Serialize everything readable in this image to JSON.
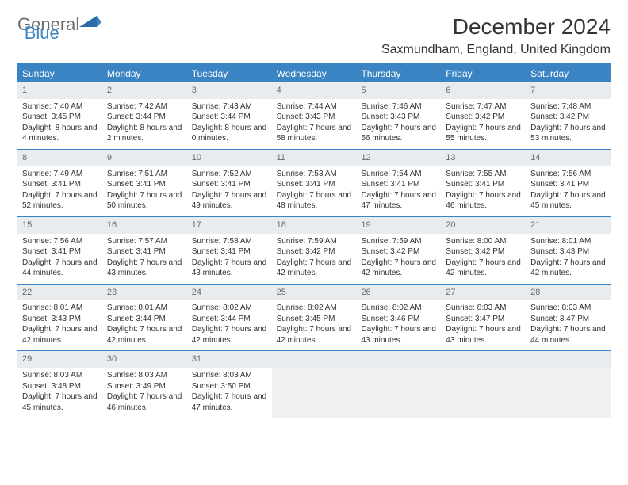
{
  "brand": {
    "general": "General",
    "blue": "Blue"
  },
  "title": "December 2024",
  "location": "Saxmundham, England, United Kingdom",
  "colors": {
    "accent": "#3a84c4",
    "header_text": "#ffffff",
    "day_num_bg": "#e8ecef",
    "day_num_text": "#6b6b6b",
    "body_text": "#333333"
  },
  "weekdays": [
    "Sunday",
    "Monday",
    "Tuesday",
    "Wednesday",
    "Thursday",
    "Friday",
    "Saturday"
  ],
  "weeks": [
    [
      {
        "n": "1",
        "sunrise": "Sunrise: 7:40 AM",
        "sunset": "Sunset: 3:45 PM",
        "daylight": "Daylight: 8 hours and 4 minutes."
      },
      {
        "n": "2",
        "sunrise": "Sunrise: 7:42 AM",
        "sunset": "Sunset: 3:44 PM",
        "daylight": "Daylight: 8 hours and 2 minutes."
      },
      {
        "n": "3",
        "sunrise": "Sunrise: 7:43 AM",
        "sunset": "Sunset: 3:44 PM",
        "daylight": "Daylight: 8 hours and 0 minutes."
      },
      {
        "n": "4",
        "sunrise": "Sunrise: 7:44 AM",
        "sunset": "Sunset: 3:43 PM",
        "daylight": "Daylight: 7 hours and 58 minutes."
      },
      {
        "n": "5",
        "sunrise": "Sunrise: 7:46 AM",
        "sunset": "Sunset: 3:43 PM",
        "daylight": "Daylight: 7 hours and 56 minutes."
      },
      {
        "n": "6",
        "sunrise": "Sunrise: 7:47 AM",
        "sunset": "Sunset: 3:42 PM",
        "daylight": "Daylight: 7 hours and 55 minutes."
      },
      {
        "n": "7",
        "sunrise": "Sunrise: 7:48 AM",
        "sunset": "Sunset: 3:42 PM",
        "daylight": "Daylight: 7 hours and 53 minutes."
      }
    ],
    [
      {
        "n": "8",
        "sunrise": "Sunrise: 7:49 AM",
        "sunset": "Sunset: 3:41 PM",
        "daylight": "Daylight: 7 hours and 52 minutes."
      },
      {
        "n": "9",
        "sunrise": "Sunrise: 7:51 AM",
        "sunset": "Sunset: 3:41 PM",
        "daylight": "Daylight: 7 hours and 50 minutes."
      },
      {
        "n": "10",
        "sunrise": "Sunrise: 7:52 AM",
        "sunset": "Sunset: 3:41 PM",
        "daylight": "Daylight: 7 hours and 49 minutes."
      },
      {
        "n": "11",
        "sunrise": "Sunrise: 7:53 AM",
        "sunset": "Sunset: 3:41 PM",
        "daylight": "Daylight: 7 hours and 48 minutes."
      },
      {
        "n": "12",
        "sunrise": "Sunrise: 7:54 AM",
        "sunset": "Sunset: 3:41 PM",
        "daylight": "Daylight: 7 hours and 47 minutes."
      },
      {
        "n": "13",
        "sunrise": "Sunrise: 7:55 AM",
        "sunset": "Sunset: 3:41 PM",
        "daylight": "Daylight: 7 hours and 46 minutes."
      },
      {
        "n": "14",
        "sunrise": "Sunrise: 7:56 AM",
        "sunset": "Sunset: 3:41 PM",
        "daylight": "Daylight: 7 hours and 45 minutes."
      }
    ],
    [
      {
        "n": "15",
        "sunrise": "Sunrise: 7:56 AM",
        "sunset": "Sunset: 3:41 PM",
        "daylight": "Daylight: 7 hours and 44 minutes."
      },
      {
        "n": "16",
        "sunrise": "Sunrise: 7:57 AM",
        "sunset": "Sunset: 3:41 PM",
        "daylight": "Daylight: 7 hours and 43 minutes."
      },
      {
        "n": "17",
        "sunrise": "Sunrise: 7:58 AM",
        "sunset": "Sunset: 3:41 PM",
        "daylight": "Daylight: 7 hours and 43 minutes."
      },
      {
        "n": "18",
        "sunrise": "Sunrise: 7:59 AM",
        "sunset": "Sunset: 3:42 PM",
        "daylight": "Daylight: 7 hours and 42 minutes."
      },
      {
        "n": "19",
        "sunrise": "Sunrise: 7:59 AM",
        "sunset": "Sunset: 3:42 PM",
        "daylight": "Daylight: 7 hours and 42 minutes."
      },
      {
        "n": "20",
        "sunrise": "Sunrise: 8:00 AM",
        "sunset": "Sunset: 3:42 PM",
        "daylight": "Daylight: 7 hours and 42 minutes."
      },
      {
        "n": "21",
        "sunrise": "Sunrise: 8:01 AM",
        "sunset": "Sunset: 3:43 PM",
        "daylight": "Daylight: 7 hours and 42 minutes."
      }
    ],
    [
      {
        "n": "22",
        "sunrise": "Sunrise: 8:01 AM",
        "sunset": "Sunset: 3:43 PM",
        "daylight": "Daylight: 7 hours and 42 minutes."
      },
      {
        "n": "23",
        "sunrise": "Sunrise: 8:01 AM",
        "sunset": "Sunset: 3:44 PM",
        "daylight": "Daylight: 7 hours and 42 minutes."
      },
      {
        "n": "24",
        "sunrise": "Sunrise: 8:02 AM",
        "sunset": "Sunset: 3:44 PM",
        "daylight": "Daylight: 7 hours and 42 minutes."
      },
      {
        "n": "25",
        "sunrise": "Sunrise: 8:02 AM",
        "sunset": "Sunset: 3:45 PM",
        "daylight": "Daylight: 7 hours and 42 minutes."
      },
      {
        "n": "26",
        "sunrise": "Sunrise: 8:02 AM",
        "sunset": "Sunset: 3:46 PM",
        "daylight": "Daylight: 7 hours and 43 minutes."
      },
      {
        "n": "27",
        "sunrise": "Sunrise: 8:03 AM",
        "sunset": "Sunset: 3:47 PM",
        "daylight": "Daylight: 7 hours and 43 minutes."
      },
      {
        "n": "28",
        "sunrise": "Sunrise: 8:03 AM",
        "sunset": "Sunset: 3:47 PM",
        "daylight": "Daylight: 7 hours and 44 minutes."
      }
    ],
    [
      {
        "n": "29",
        "sunrise": "Sunrise: 8:03 AM",
        "sunset": "Sunset: 3:48 PM",
        "daylight": "Daylight: 7 hours and 45 minutes."
      },
      {
        "n": "30",
        "sunrise": "Sunrise: 8:03 AM",
        "sunset": "Sunset: 3:49 PM",
        "daylight": "Daylight: 7 hours and 46 minutes."
      },
      {
        "n": "31",
        "sunrise": "Sunrise: 8:03 AM",
        "sunset": "Sunset: 3:50 PM",
        "daylight": "Daylight: 7 hours and 47 minutes."
      },
      null,
      null,
      null,
      null
    ]
  ]
}
